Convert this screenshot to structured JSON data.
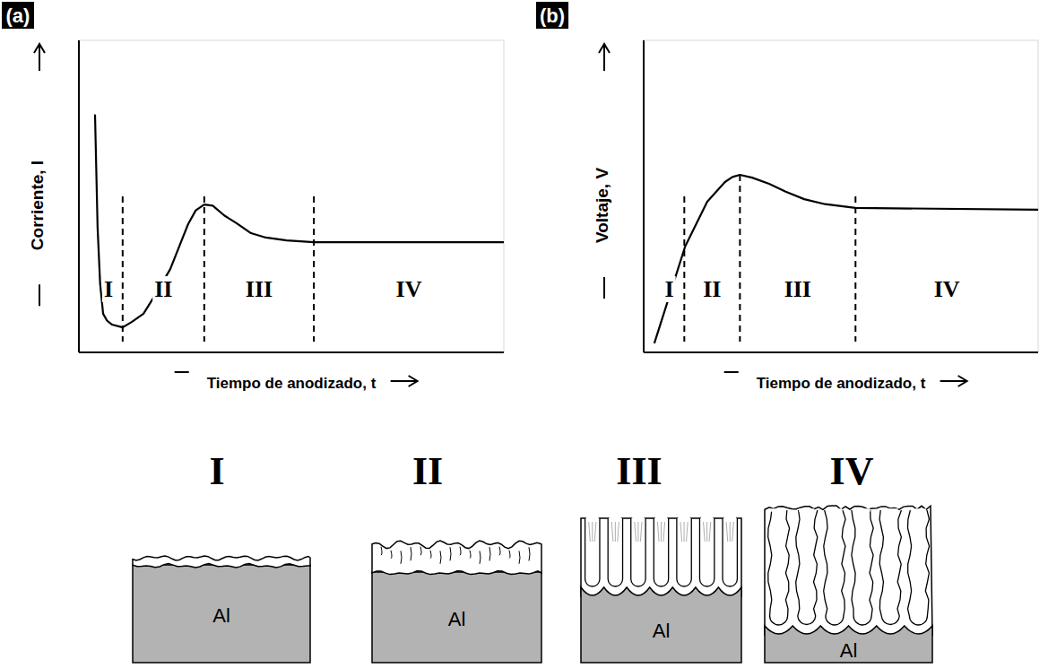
{
  "chart_data": [
    {
      "type": "line",
      "panel_label": "(a)",
      "x_label": "Tiempo de anodizado, t",
      "y_label": "Corriente, I",
      "xlim": [
        0,
        100
      ],
      "ylim": [
        0,
        100
      ],
      "tick_labels": false,
      "grid": false,
      "color": "#000000",
      "x": [
        3.6,
        3.8,
        4.4,
        5.0,
        5.7,
        6.6,
        7.8,
        10.3,
        12.5,
        15.2,
        18.0,
        21.5,
        25.7,
        27.5,
        29.5,
        31.5,
        34.2,
        37.0,
        40.5,
        44.0,
        48.9,
        55.3,
        100
      ],
      "values": [
        76,
        76,
        40,
        22,
        12.4,
        10.2,
        8.9,
        8.0,
        9.8,
        12.4,
        18.5,
        26.7,
        41.1,
        45.5,
        47.4,
        47.0,
        43.9,
        41.5,
        38.2,
        36.8,
        35.9,
        35.3,
        35.3
      ],
      "dividers": [
        10.3,
        29.5,
        55.3
      ],
      "regions": [
        "I",
        "II",
        "III",
        "IV"
      ]
    },
    {
      "type": "line",
      "panel_label": "(b)",
      "x_label": "Tiempo de anodizado, t",
      "y_label": "Voltaje, V",
      "xlim": [
        0,
        100
      ],
      "ylim": [
        0,
        100
      ],
      "tick_labels": false,
      "grid": false,
      "color": "#000000",
      "x": [
        2.7,
        10.5,
        16.1,
        20.6,
        22.5,
        24.4,
        27.5,
        31.8,
        36.0,
        40.7,
        46.0,
        53.7,
        100
      ],
      "values": [
        2.9,
        33.9,
        48.3,
        54.6,
        56.2,
        56.9,
        56.0,
        54.0,
        51.5,
        49.1,
        47.5,
        46.3,
        45.7
      ],
      "dividers": [
        10.3,
        24.4,
        53.7
      ],
      "regions": [
        "I",
        "II",
        "III",
        "IV"
      ]
    }
  ],
  "diagram": {
    "stages": [
      {
        "label": "I",
        "metal": "Al"
      },
      {
        "label": "II",
        "metal": "Al"
      },
      {
        "label": "III",
        "metal": "Al"
      },
      {
        "label": "IV",
        "metal": "Al"
      }
    ]
  }
}
